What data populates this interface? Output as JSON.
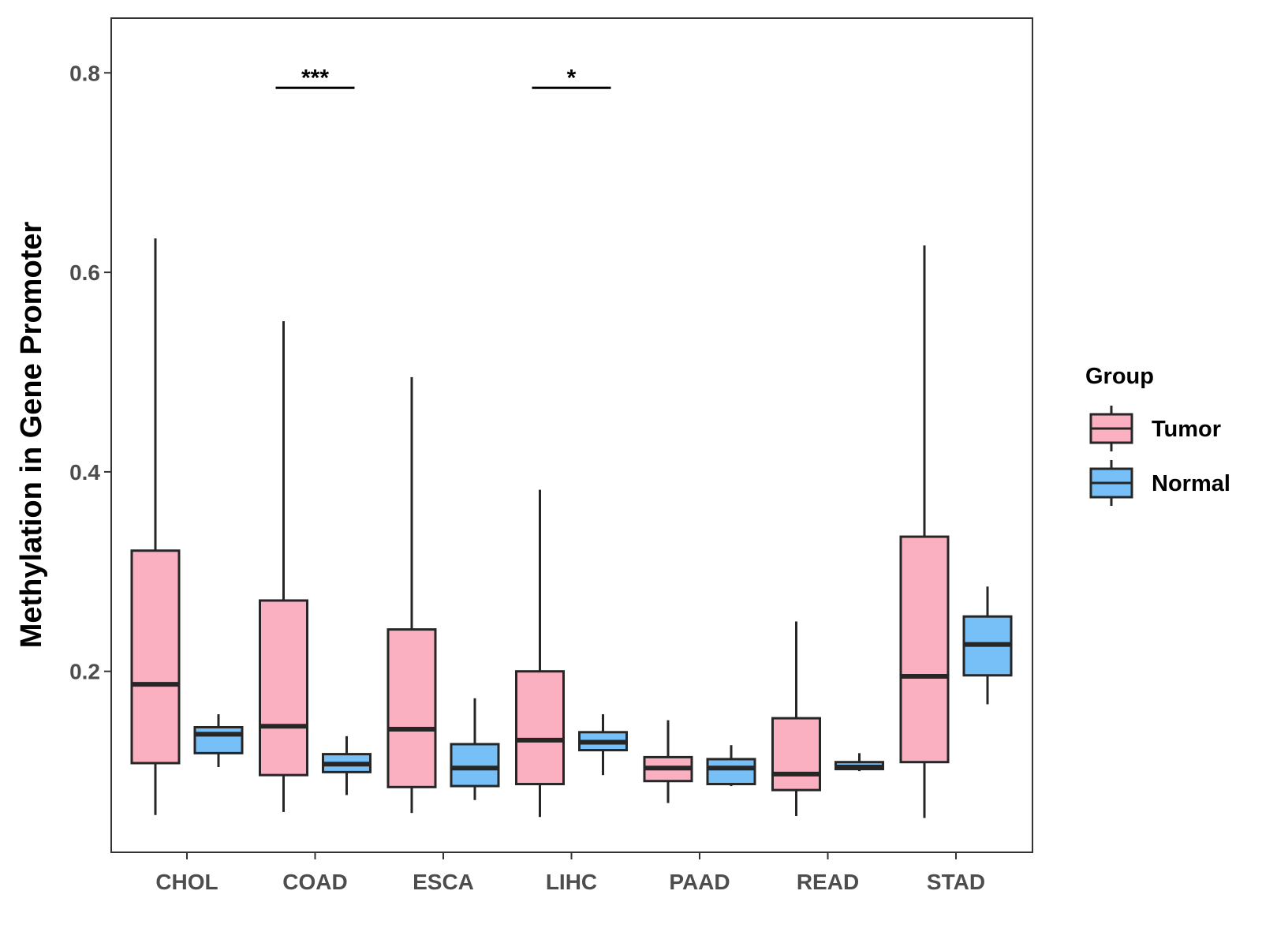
{
  "chart_data": {
    "type": "boxplot",
    "title": "",
    "xlabel": "",
    "ylabel": "Methylation in Gene Promoter",
    "ylim": [
      0.0,
      0.84
    ],
    "yticks": [
      0.2,
      0.4,
      0.6,
      0.8
    ],
    "ytick_labels": [
      "0.2",
      "0.4",
      "0.6",
      "0.8"
    ],
    "categories": [
      "CHOL",
      "COAD",
      "ESCA",
      "LIHC",
      "PAAD",
      "READ",
      "STAD"
    ],
    "legend": {
      "title": "Group",
      "position": "right",
      "entries": [
        {
          "name": "Tumor",
          "color": "#FBB0C1"
        },
        {
          "name": "Normal",
          "color": "#76BFF7"
        }
      ]
    },
    "series": [
      {
        "name": "Tumor",
        "color": "#FBB0C1",
        "boxes": [
          {
            "min": 0.056,
            "q1": 0.108,
            "median": 0.187,
            "q3": 0.321,
            "max": 0.634
          },
          {
            "min": 0.059,
            "q1": 0.096,
            "median": 0.145,
            "q3": 0.271,
            "max": 0.551
          },
          {
            "min": 0.058,
            "q1": 0.084,
            "median": 0.142,
            "q3": 0.242,
            "max": 0.495
          },
          {
            "min": 0.054,
            "q1": 0.087,
            "median": 0.131,
            "q3": 0.2,
            "max": 0.382
          },
          {
            "min": 0.068,
            "q1": 0.09,
            "median": 0.103,
            "q3": 0.114,
            "max": 0.151
          },
          {
            "min": 0.055,
            "q1": 0.081,
            "median": 0.097,
            "q3": 0.153,
            "max": 0.25
          },
          {
            "min": 0.053,
            "q1": 0.109,
            "median": 0.195,
            "q3": 0.335,
            "max": 0.627
          }
        ]
      },
      {
        "name": "Normal",
        "color": "#76BFF7",
        "boxes": [
          {
            "min": 0.104,
            "q1": 0.118,
            "median": 0.137,
            "q3": 0.144,
            "max": 0.157
          },
          {
            "min": 0.076,
            "q1": 0.099,
            "median": 0.107,
            "q3": 0.117,
            "max": 0.135
          },
          {
            "min": 0.071,
            "q1": 0.085,
            "median": 0.103,
            "q3": 0.127,
            "max": 0.173
          },
          {
            "min": 0.096,
            "q1": 0.121,
            "median": 0.129,
            "q3": 0.139,
            "max": 0.157
          },
          {
            "min": 0.085,
            "q1": 0.087,
            "median": 0.103,
            "q3": 0.112,
            "max": 0.126
          },
          {
            "min": 0.1,
            "q1": 0.102,
            "median": 0.104,
            "q3": 0.109,
            "max": 0.118
          },
          {
            "min": 0.167,
            "q1": 0.196,
            "median": 0.227,
            "q3": 0.255,
            "max": 0.285
          }
        ]
      }
    ],
    "annotations": [
      {
        "category": "COAD",
        "label": "***",
        "y": 0.785
      },
      {
        "category": "LIHC",
        "label": "*",
        "y": 0.785
      }
    ]
  }
}
